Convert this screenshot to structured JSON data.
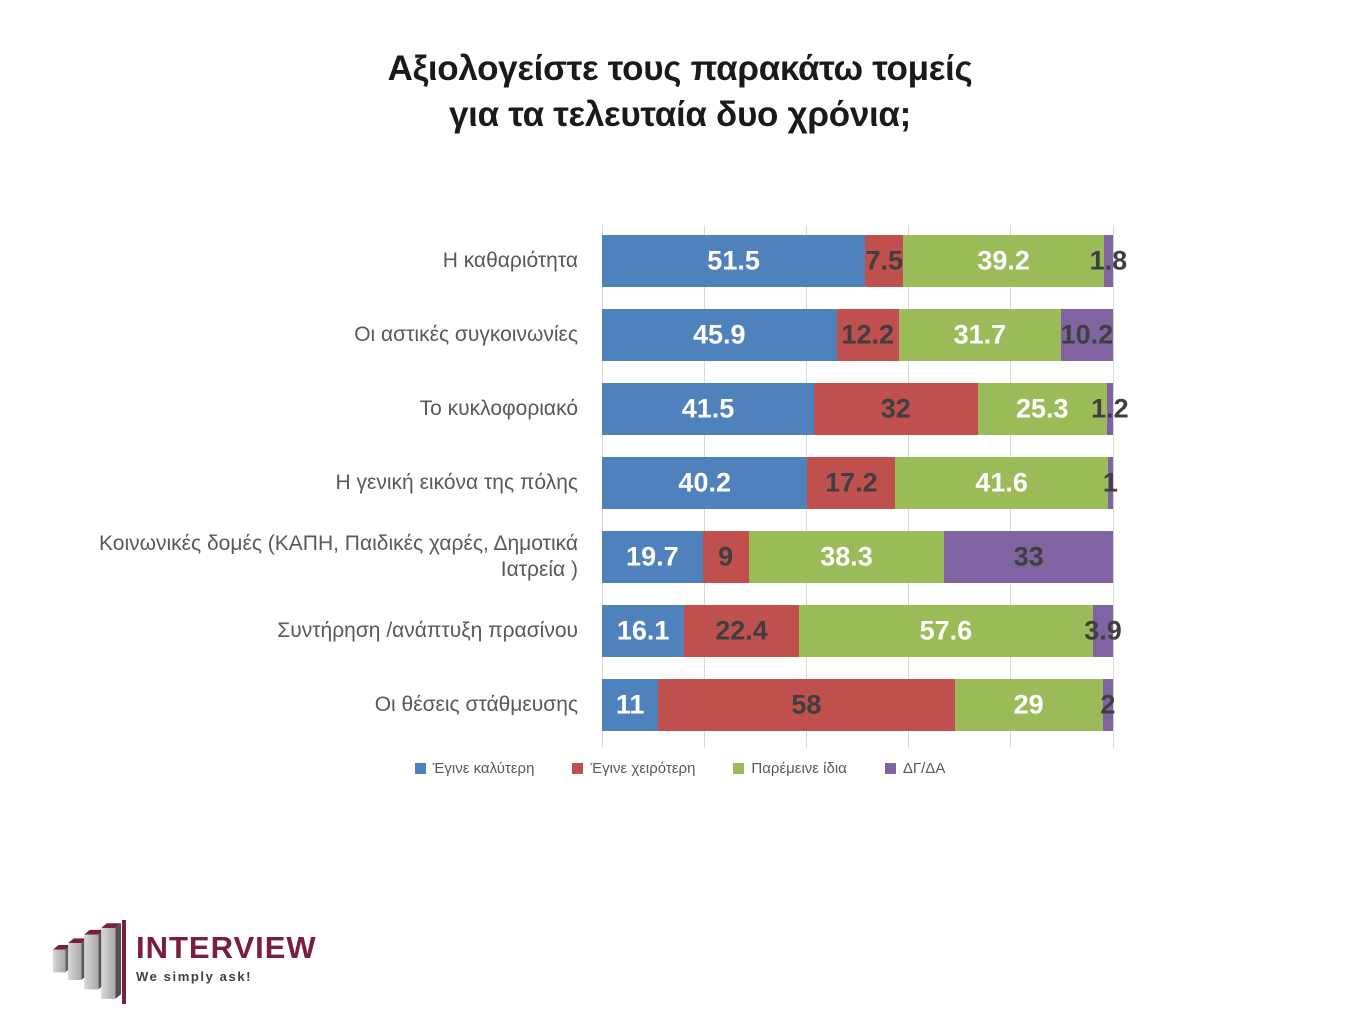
{
  "title": {
    "line1": "Αξιολογείστε τους παρακάτω τομείς",
    "line2": "για τα τελευταία δυο χρόνια;"
  },
  "chart_data": {
    "type": "bar",
    "stacked": true,
    "orientation": "horizontal",
    "title": "Αξιολογείστε τους παρακάτω τομείς για τα τελευταία δυο χρόνια;",
    "categories": [
      "Η καθαριότητα",
      "Οι αστικές συγκοινωνίες",
      "Το κυκλοφοριακό",
      "Η γενική εικόνα της πόλης",
      "Κοινωνικές δομές (ΚΑΠΗ, Παιδικές χαρές, Δημοτικά Ιατρεία )",
      "Συντήρηση /ανάπτυξη πρασίνου",
      "Οι θέσεις στάθμευσης"
    ],
    "series": [
      {
        "name": "Έγινε καλύτερη",
        "color": "#4F81BD",
        "label_color": "#FFFFFF",
        "values": [
          51.5,
          45.9,
          41.5,
          40.2,
          19.7,
          16.1,
          11
        ]
      },
      {
        "name": "Έγινε χειρότερη",
        "color": "#C0504D",
        "label_color": "#3F3F3F",
        "values": [
          7.5,
          12.2,
          32,
          17.2,
          9,
          22.4,
          58
        ]
      },
      {
        "name": "Παρέμεινε ίδια",
        "color": "#9BBB59",
        "label_color": "#FFFFFF",
        "values": [
          39.2,
          31.7,
          25.3,
          41.6,
          38.3,
          57.6,
          29
        ]
      },
      {
        "name": "ΔΓ/ΔΑ",
        "color": "#8064A2",
        "label_color": "#3F3F3F",
        "values": [
          1.8,
          10.2,
          1.2,
          1,
          33,
          3.9,
          2
        ]
      }
    ],
    "xlim": [
      0,
      100
    ],
    "gridline_step": 20,
    "grid": true,
    "gridline_color": "#D9D9D9",
    "legend_position": "bottom",
    "value_labels": true
  },
  "logo": {
    "name": "INTERVIEW",
    "tagline": "We simply ask!",
    "brand_color": "#7A1E3D"
  }
}
